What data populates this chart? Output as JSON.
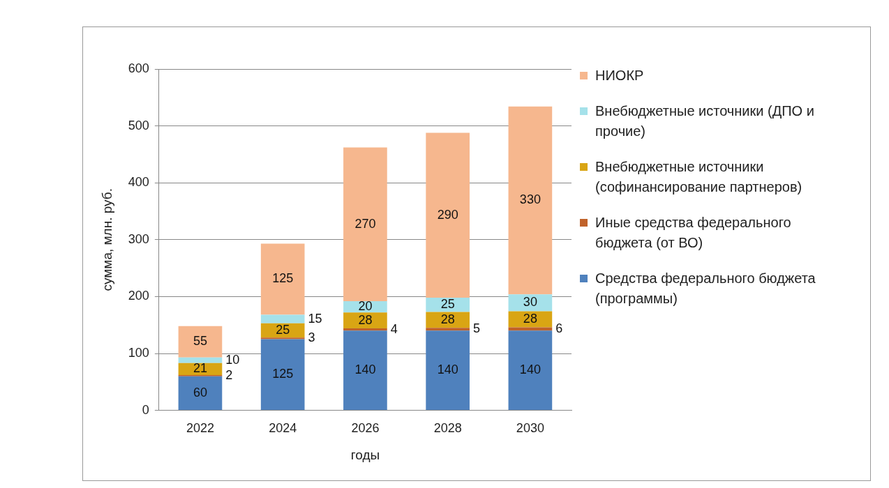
{
  "chart_data": {
    "type": "bar",
    "stacked": true,
    "xlabel": "годы",
    "ylabel": "сумма, млн. руб.",
    "categories": [
      "2022",
      "2024",
      "2026",
      "2028",
      "2030"
    ],
    "series": [
      {
        "name": "Средства федерального бюджета (программы)",
        "color": "#4f81bd",
        "values": [
          60,
          125,
          140,
          140,
          140
        ]
      },
      {
        "name": "Иные средства федерального бюджета (от ВО)",
        "color": "#c0622a",
        "values": [
          2,
          3,
          4,
          5,
          6
        ]
      },
      {
        "name": "Внебюджетные источники (софинансирование партнеров)",
        "color": "#d9a514",
        "values": [
          21,
          25,
          28,
          28,
          28
        ]
      },
      {
        "name": "Внебюджетные источники (ДПО и прочие)",
        "color": "#a5e1ea",
        "values": [
          10,
          15,
          20,
          25,
          30
        ]
      },
      {
        "name": "НИОКР",
        "color": "#f6b78e",
        "values": [
          55,
          125,
          270,
          290,
          330
        ]
      }
    ],
    "ylim": [
      0,
      600
    ],
    "yticks": [
      0,
      100,
      200,
      300,
      400,
      500,
      600
    ],
    "grid": "y",
    "legend": "right",
    "data_labels": true
  }
}
